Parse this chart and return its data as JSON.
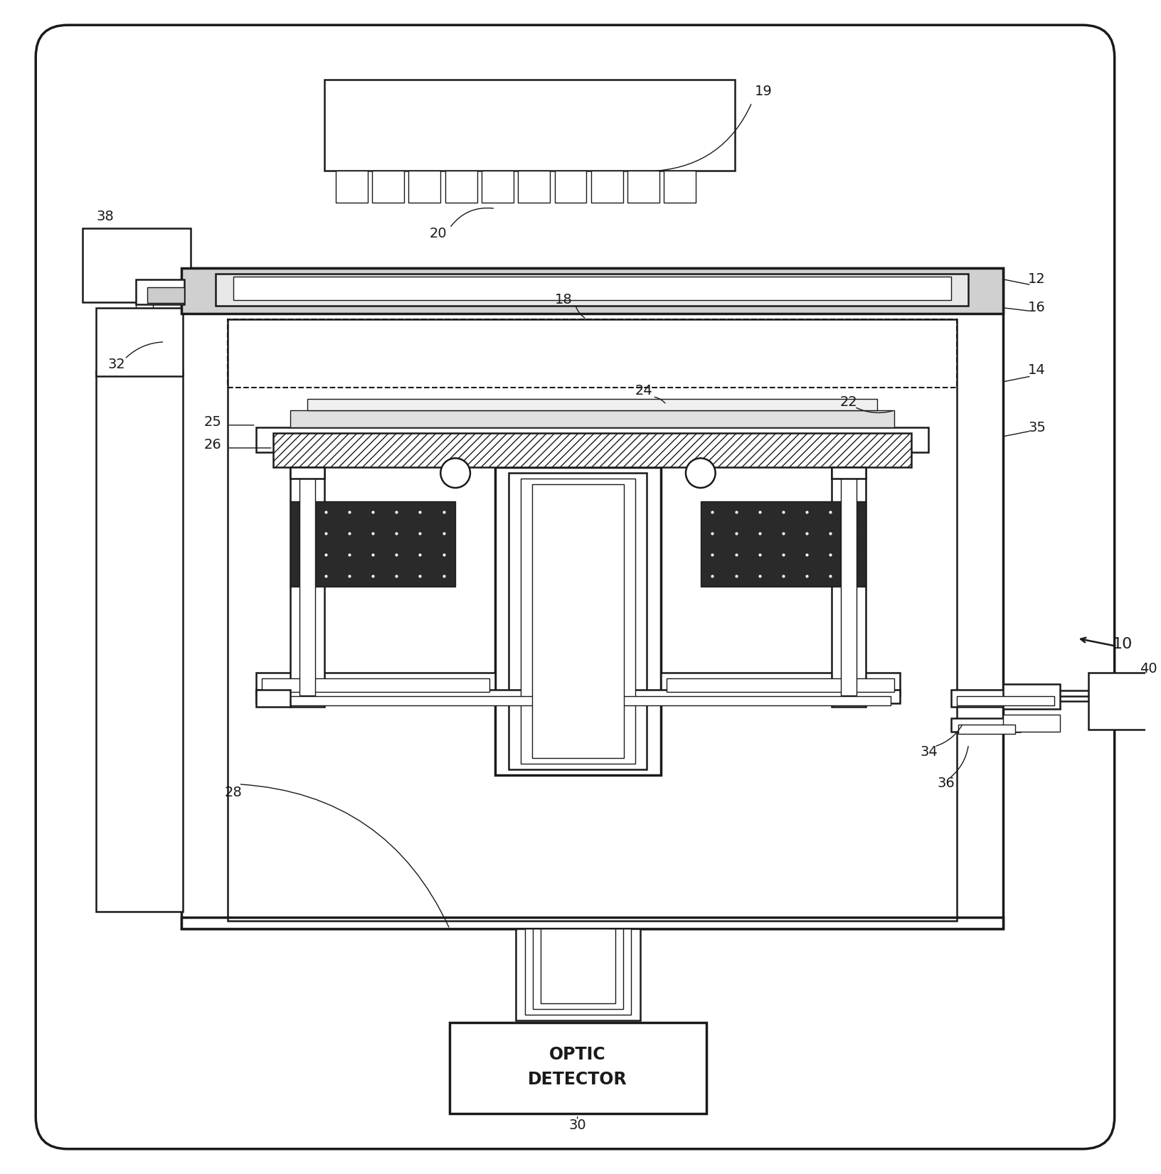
{
  "bg_color": "#ffffff",
  "lc": "#1a1a1a",
  "lw": 1.8,
  "lw_t": 1.0,
  "lw_T": 2.5,
  "fig_w": 16.33,
  "fig_h": 16.51
}
